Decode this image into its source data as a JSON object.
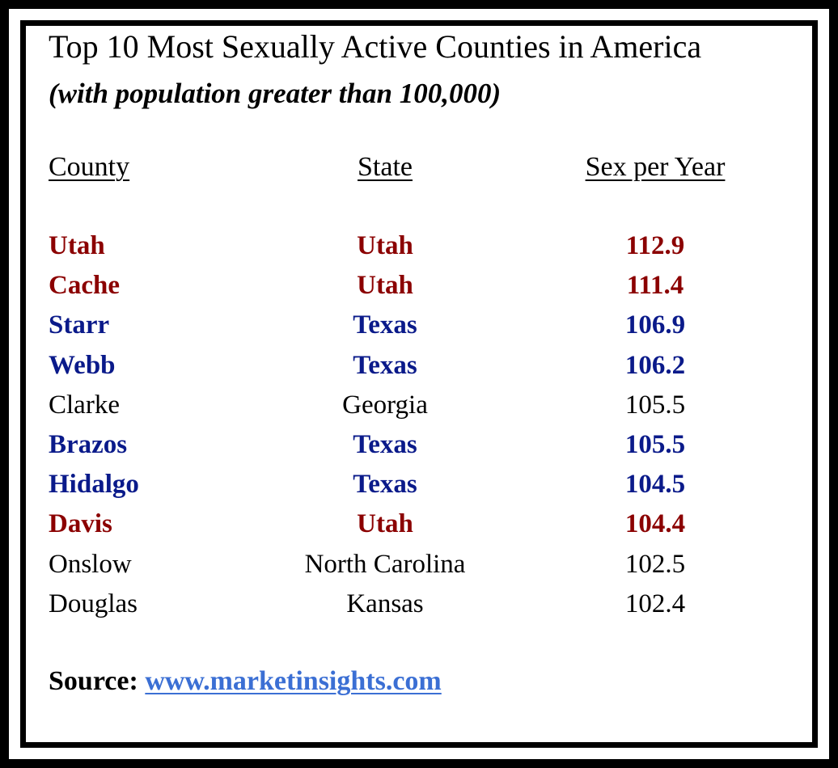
{
  "chart_data": {
    "type": "table",
    "title": "Top 10 Most Sexually Active Counties in America",
    "subtitle": "(with population greater than 100,000)",
    "columns": [
      "County",
      "State",
      "Sex per Year"
    ],
    "rows": [
      {
        "county": "Utah",
        "state": "Utah",
        "value": "112.9",
        "color": "#8b0000",
        "bold": true
      },
      {
        "county": "Cache",
        "state": "Utah",
        "value": "111.4",
        "color": "#8b0000",
        "bold": true
      },
      {
        "county": "Starr",
        "state": "Texas",
        "value": "106.9",
        "color": "#0a1a8a",
        "bold": true
      },
      {
        "county": "Webb",
        "state": "Texas",
        "value": "106.2",
        "color": "#0a1a8a",
        "bold": true
      },
      {
        "county": "Clarke",
        "state": "Georgia",
        "value": "105.5",
        "color": "#000000",
        "bold": false
      },
      {
        "county": "Brazos",
        "state": "Texas",
        "value": "105.5",
        "color": "#0a1a8a",
        "bold": true
      },
      {
        "county": "Hidalgo",
        "state": "Texas",
        "value": "104.5",
        "color": "#0a1a8a",
        "bold": true
      },
      {
        "county": "Davis",
        "state": "Utah",
        "value": "104.4",
        "color": "#8b0000",
        "bold": true
      },
      {
        "county": "Onslow",
        "state": "North Carolina",
        "value": "102.5",
        "color": "#000000",
        "bold": false
      },
      {
        "county": "Douglas",
        "state": "Kansas",
        "value": "102.4",
        "color": "#000000",
        "bold": false
      }
    ]
  },
  "source": {
    "label": "Source:",
    "link": "www.marketinsights.com"
  },
  "colors": {
    "utah": "#8b0000",
    "texas": "#0a1a8a",
    "other": "#000000",
    "link": "#3b6fd4"
  }
}
